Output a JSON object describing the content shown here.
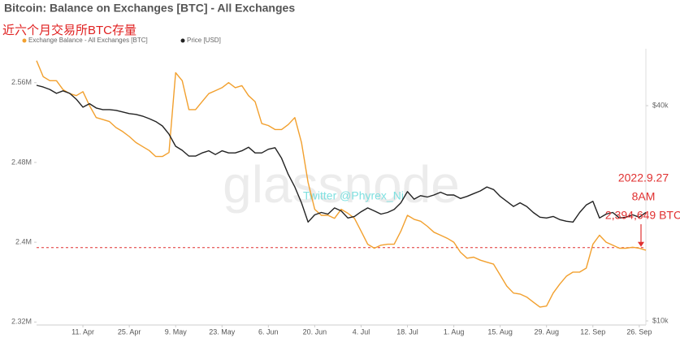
{
  "chart_data": {
    "type": "line",
    "title": "Bitcoin: Balance on Exchanges [BTC] - All Exchanges",
    "subtitle": "近六个月交易所BTC存量",
    "categories": [
      null,
      null,
      null,
      null,
      null,
      null,
      null,
      "11. Apr",
      null,
      null,
      null,
      null,
      null,
      null,
      "25. Apr",
      null,
      null,
      null,
      null,
      null,
      null,
      "9. May",
      null,
      null,
      null,
      null,
      null,
      null,
      "23. May",
      null,
      null,
      null,
      null,
      null,
      null,
      "6. Jun",
      null,
      null,
      null,
      null,
      null,
      null,
      "20. Jun",
      null,
      null,
      null,
      null,
      null,
      null,
      "4. Jul",
      null,
      null,
      null,
      null,
      null,
      null,
      "18. Jul",
      null,
      null,
      null,
      null,
      null,
      null,
      "1. Aug",
      null,
      null,
      null,
      null,
      null,
      null,
      "15. Aug",
      null,
      null,
      null,
      null,
      null,
      null,
      "29. Aug",
      null,
      null,
      null,
      null,
      null,
      null,
      "12. Sep",
      null,
      null,
      null,
      null,
      null,
      null,
      "26. Sep",
      null
    ],
    "series": [
      {
        "name": "Exchange Balance - All Exchanges [BTC]",
        "color": "#f2a02e",
        "axis": "y",
        "values": [
          2582000,
          2566000,
          2562000,
          2562000,
          2553000,
          2549000,
          2547000,
          2551000,
          2537000,
          2525000,
          2523000,
          2521000,
          2515000,
          2511000,
          2506000,
          2500000,
          2496000,
          2492000,
          2486000,
          2486000,
          2490000,
          2570000,
          2562000,
          2533000,
          2533000,
          2541000,
          2549000,
          2552000,
          2555000,
          2560000,
          2555000,
          2557000,
          2547000,
          2541000,
          2519000,
          2517000,
          2513000,
          2513000,
          2518000,
          2525000,
          2500000,
          2460000,
          2433000,
          2427000,
          2427000,
          2424000,
          2433000,
          2429000,
          2424000,
          2411000,
          2398000,
          2394000,
          2397000,
          2398000,
          2398000,
          2411000,
          2427000,
          2423000,
          2421000,
          2416000,
          2410000,
          2407000,
          2404000,
          2400000,
          2390000,
          2384000,
          2385000,
          2382000,
          2380000,
          2378000,
          2367000,
          2356000,
          2349000,
          2348000,
          2345000,
          2340000,
          2335000,
          2336000,
          2349000,
          2358000,
          2366000,
          2370000,
          2370000,
          2374000,
          2398000,
          2407000,
          2400000,
          2397000,
          2394000,
          2394000,
          2395000,
          2394000,
          2392000
        ]
      },
      {
        "name": "Price [USD]",
        "color": "#222222",
        "axis": "y2",
        "values": [
          45600,
          45100,
          44400,
          43300,
          44000,
          43300,
          41700,
          39600,
          40500,
          39400,
          39000,
          39000,
          38800,
          38400,
          38000,
          37800,
          37400,
          36800,
          36100,
          35100,
          33300,
          30800,
          30000,
          28900,
          28900,
          29500,
          29900,
          29200,
          29900,
          29500,
          29500,
          29900,
          30600,
          29500,
          29500,
          30200,
          30500,
          28500,
          25700,
          23700,
          21400,
          18900,
          19800,
          20100,
          19900,
          20700,
          20300,
          19400,
          19600,
          20200,
          20700,
          20300,
          19900,
          20100,
          20500,
          21400,
          23000,
          21900,
          22400,
          22200,
          22500,
          22900,
          22500,
          22500,
          22000,
          22300,
          22700,
          23100,
          23700,
          23300,
          22300,
          21600,
          20900,
          21400,
          20900,
          20100,
          19500,
          19400,
          19600,
          19200,
          19000,
          18900,
          20100,
          21100,
          21600,
          19400,
          19900,
          20100,
          19400,
          19500,
          19800,
          19500,
          20100
        ]
      }
    ],
    "ylim": [
      2317000,
      2594000
    ],
    "yticks": [
      {
        "value": 2320000,
        "label": "2.32M"
      },
      {
        "value": 2400000,
        "label": "2.4M"
      },
      {
        "value": 2480000,
        "label": "2.48M"
      },
      {
        "value": 2560000,
        "label": "2.56M"
      }
    ],
    "y2lim": [
      9740,
      57700
    ],
    "y2scale": "log",
    "y2ticks": [
      {
        "value": 10000,
        "label": "$10k"
      },
      {
        "value": 40000,
        "label": "$40k"
      }
    ],
    "grid": false,
    "legend": "top-left",
    "reference_line": {
      "value": 2394649,
      "color": "#e03030"
    },
    "annotation": {
      "lines": [
        "2022.9.27",
        "8AM",
        "2,394,649 BTC"
      ],
      "color": "#e03030"
    },
    "watermarks": [
      "glassnode",
      "Twitter @Phyrex_Ni"
    ]
  }
}
